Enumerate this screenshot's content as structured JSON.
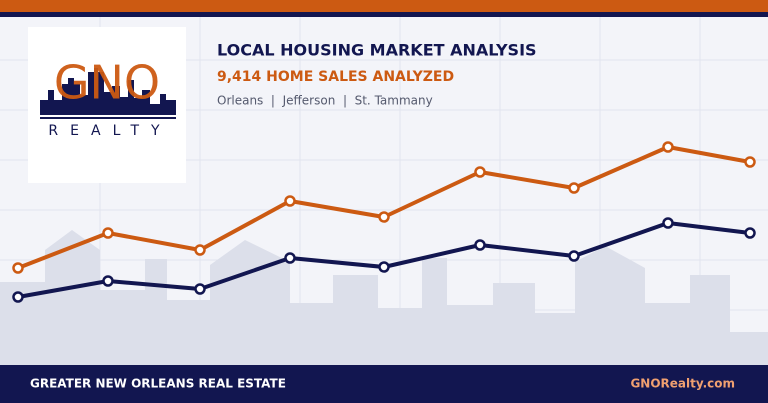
{
  "logo": {
    "name": "GNO",
    "tagline": "REALTY"
  },
  "header": {
    "title": "LOCAL HOUSING MARKET ANALYSIS",
    "subtitle": "9,414 HOME SALES ANALYZED",
    "areas": "Orleans  |  Jefferson  |  St. Tammany"
  },
  "footer": {
    "tagline": "GREATER NEW ORLEANS REAL ESTATE",
    "website": "GNORealty.com"
  }
}
